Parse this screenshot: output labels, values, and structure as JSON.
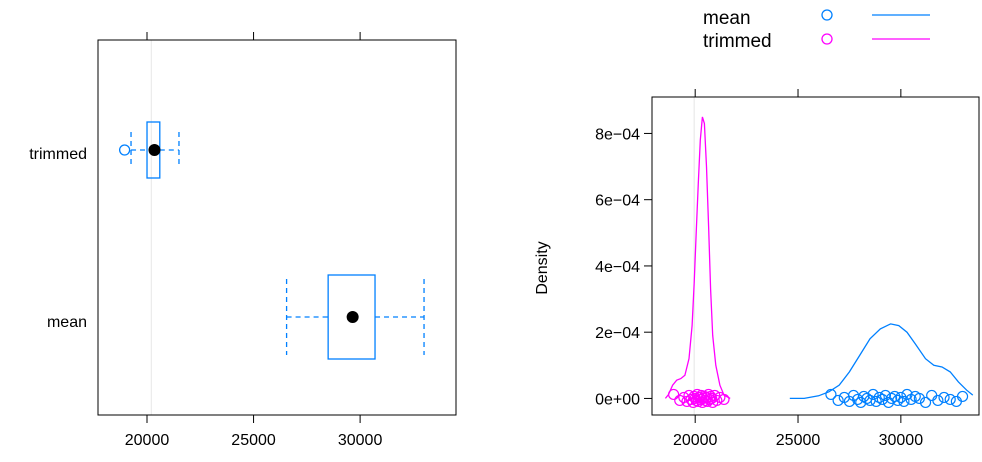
{
  "colors": {
    "mean": "#0080ff",
    "trimmed": "#ff00ff",
    "refline": "#e6e6e6",
    "axis": "#000000"
  },
  "chart_data": [
    {
      "type": "boxplot",
      "title": "",
      "xlabel": "",
      "ylabel": "",
      "xlim": [
        17700,
        34500
      ],
      "xticks": [
        20000,
        25000,
        30000
      ],
      "xtick_labels": [
        "20000",
        "25000",
        "30000"
      ],
      "ref_line": 20200,
      "categories": [
        "mean",
        "trimmed"
      ],
      "boxes": [
        {
          "name": "mean",
          "whisker_low": 26550,
          "q1": 28500,
          "median": 29650,
          "q3": 30700,
          "whisker_high": 33000,
          "outliers": []
        },
        {
          "name": "trimmed",
          "whisker_low": 19250,
          "q1": 20000,
          "median": 20350,
          "q3": 20600,
          "whisker_high": 21500,
          "outliers": [
            18950
          ]
        }
      ],
      "grid": false
    },
    {
      "type": "density",
      "title": "",
      "xlabel": "",
      "ylabel": "Density",
      "xlim": [
        17900,
        33800
      ],
      "ylim": [
        -5e-05,
        0.00091
      ],
      "xticks": [
        20000,
        25000,
        30000
      ],
      "xtick_labels": [
        "20000",
        "25000",
        "30000"
      ],
      "yticks": [
        0,
        0.0002,
        0.0004,
        0.0006,
        0.0008
      ],
      "ytick_labels": [
        "0e+00",
        "2e−04",
        "4e−04",
        "6e−04",
        "8e−04"
      ],
      "ref_line": 19950,
      "legend": {
        "position": "top",
        "entries": [
          "mean",
          "trimmed"
        ]
      },
      "grid": false,
      "series": [
        {
          "name": "mean",
          "curve": [
            [
              24600,
              0.0
            ],
            [
              25300,
              0.0
            ],
            [
              26000,
              8e-06
            ],
            [
              26500,
              2e-05
            ],
            [
              27000,
              4e-05
            ],
            [
              27500,
              8e-05
            ],
            [
              28000,
              0.00013
            ],
            [
              28500,
              0.00018
            ],
            [
              29000,
              0.00021
            ],
            [
              29500,
              0.000225
            ],
            [
              29900,
              0.00022
            ],
            [
              30300,
              0.0002
            ],
            [
              30700,
              0.000165
            ],
            [
              31200,
              0.00012
            ],
            [
              31600,
              0.0001
            ],
            [
              32000,
              9.5e-05
            ],
            [
              32400,
              8e-05
            ],
            [
              32800,
              5e-05
            ],
            [
              33200,
              2.5e-05
            ],
            [
              33500,
              1e-05
            ]
          ],
          "points": [
            26600,
            26950,
            27250,
            27500,
            27700,
            27900,
            28050,
            28200,
            28350,
            28500,
            28650,
            28800,
            28950,
            29100,
            29250,
            29400,
            29550,
            29700,
            29850,
            30000,
            30150,
            30300,
            30500,
            30700,
            30900,
            31200,
            31500,
            31800,
            32100,
            32400,
            32700,
            33000
          ]
        },
        {
          "name": "trimmed",
          "curve": [
            [
              18550,
              0.0
            ],
            [
              18700,
              1.2e-05
            ],
            [
              18900,
              4e-05
            ],
            [
              19100,
              5.5e-05
            ],
            [
              19300,
              6e-05
            ],
            [
              19500,
              7e-05
            ],
            [
              19700,
              0.00012
            ],
            [
              19850,
              0.00022
            ],
            [
              19950,
              0.00035
            ],
            [
              20050,
              0.0005
            ],
            [
              20150,
              0.00065
            ],
            [
              20250,
              0.00078
            ],
            [
              20350,
              0.00085
            ],
            [
              20450,
              0.00083
            ],
            [
              20550,
              0.0007
            ],
            [
              20650,
              0.00052
            ],
            [
              20750,
              0.00033
            ],
            [
              20850,
              0.00019
            ],
            [
              21000,
              0.0001
            ],
            [
              21200,
              4e-05
            ],
            [
              21400,
              1e-05
            ],
            [
              21700,
              0.0
            ]
          ],
          "points": [
            18950,
            19250,
            19450,
            19600,
            19700,
            19800,
            19900,
            19950,
            20000,
            20050,
            20100,
            20150,
            20200,
            20250,
            20300,
            20350,
            20400,
            20450,
            20500,
            20550,
            20600,
            20650,
            20700,
            20750,
            20800,
            20850,
            20950,
            21050,
            21200,
            21400
          ]
        }
      ]
    }
  ]
}
